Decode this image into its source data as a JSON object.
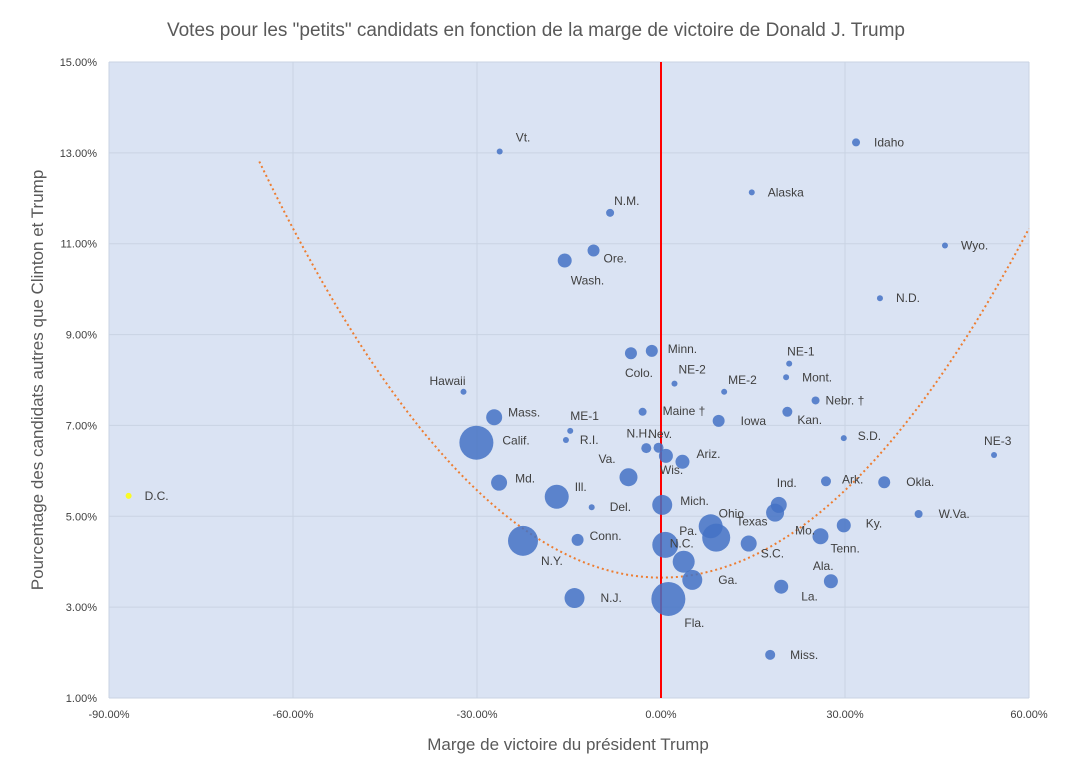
{
  "chart_data": {
    "type": "scatter",
    "title": "Votes pour les \"petits\" candidats en fonction de la marge de victoire de Donald J. Trump",
    "xlabel": "Marge de victoire du président Trump",
    "ylabel": "Pourcentage des candidats autres que Clinton et Trump",
    "xlim": [
      -0.9,
      0.6
    ],
    "ylim": [
      0.01,
      0.15
    ],
    "x_ticks": [
      -0.9,
      -0.6,
      -0.3,
      0.0,
      0.3,
      0.6
    ],
    "x_tick_labels": [
      "-90.00%",
      "-60.00%",
      "-30.00%",
      "0.00%",
      "30.00%",
      "60.00%"
    ],
    "y_ticks": [
      0.01,
      0.03,
      0.05,
      0.07,
      0.09,
      0.11,
      0.13,
      0.15
    ],
    "y_tick_labels": [
      "1.00%",
      "3.00%",
      "5.00%",
      "7.00%",
      "9.00%",
      "11.00%",
      "13.00%",
      "15.00%"
    ],
    "grid": true,
    "vertical_reference_line_x": 0.0,
    "trendline": {
      "type": "polynomial",
      "degree": 2,
      "coefficients": [
        0.0365,
        0.0,
        0.2135
      ],
      "x_range": [
        -0.655,
        0.6
      ]
    },
    "colors": {
      "plot_bg": "#dae3f3",
      "point": "#4472c4",
      "highlight_point": "#ffff00",
      "ref_line": "#ff0000",
      "trendline": "#ed7d31",
      "grid": "#c9d3e3"
    },
    "points": [
      {
        "state": "Vt.",
        "x": -0.263,
        "y": 0.1303,
        "size": 3
      },
      {
        "state": "Idaho",
        "x": 0.318,
        "y": 0.1323,
        "size": 4
      },
      {
        "state": "Alaska",
        "x": 0.148,
        "y": 0.1213,
        "size": 3
      },
      {
        "state": "N.M.",
        "x": -0.083,
        "y": 0.1168,
        "size": 4
      },
      {
        "state": "Wyo.",
        "x": 0.463,
        "y": 0.1096,
        "size": 3
      },
      {
        "state": "Ore.",
        "x": -0.11,
        "y": 0.1085,
        "size": 6
      },
      {
        "state": "Wash.",
        "x": -0.157,
        "y": 0.1063,
        "size": 7
      },
      {
        "state": "N.D.",
        "x": 0.357,
        "y": 0.098,
        "size": 3
      },
      {
        "state": "Minn.",
        "x": -0.015,
        "y": 0.0864,
        "size": 6
      },
      {
        "state": "Colo.",
        "x": -0.049,
        "y": 0.0859,
        "size": 6
      },
      {
        "state": "NE-1",
        "x": 0.209,
        "y": 0.0836,
        "size": 3
      },
      {
        "state": "Mont.",
        "x": 0.204,
        "y": 0.0806,
        "size": 3
      },
      {
        "state": "NE-2",
        "x": 0.022,
        "y": 0.0792,
        "size": 3
      },
      {
        "state": "Hawaii",
        "x": -0.322,
        "y": 0.0774,
        "size": 3
      },
      {
        "state": "ME-2",
        "x": 0.103,
        "y": 0.0774,
        "size": 3
      },
      {
        "state": "Nebr. †",
        "x": 0.252,
        "y": 0.0755,
        "size": 4
      },
      {
        "state": "Mass.",
        "x": -0.272,
        "y": 0.0718,
        "size": 8
      },
      {
        "state": "Maine †",
        "x": -0.03,
        "y": 0.073,
        "size": 4
      },
      {
        "state": "Kan.",
        "x": 0.206,
        "y": 0.073,
        "size": 5
      },
      {
        "state": "Iowa",
        "x": 0.094,
        "y": 0.071,
        "size": 6
      },
      {
        "state": "ME-1",
        "x": -0.148,
        "y": 0.0688,
        "size": 3
      },
      {
        "state": "R.I.",
        "x": -0.155,
        "y": 0.0668,
        "size": 3
      },
      {
        "state": "S.D.",
        "x": 0.298,
        "y": 0.0672,
        "size": 3
      },
      {
        "state": "Calif.",
        "x": -0.301,
        "y": 0.0662,
        "size": 17
      },
      {
        "state": "N.H.",
        "x": -0.004,
        "y": 0.0651,
        "size": 5
      },
      {
        "state": "Nev.",
        "x": -0.024,
        "y": 0.065,
        "size": 5
      },
      {
        "state": "NE-3",
        "x": 0.543,
        "y": 0.0635,
        "size": 3
      },
      {
        "state": "Ariz.",
        "x": 0.035,
        "y": 0.062,
        "size": 7
      },
      {
        "state": "Wis.",
        "x": 0.008,
        "y": 0.0633,
        "size": 7
      },
      {
        "state": "Va.",
        "x": -0.053,
        "y": 0.0586,
        "size": 9
      },
      {
        "state": "Ark.",
        "x": 0.269,
        "y": 0.0577,
        "size": 5
      },
      {
        "state": "Okla.",
        "x": 0.364,
        "y": 0.0575,
        "size": 6
      },
      {
        "state": "Md.",
        "x": -0.264,
        "y": 0.0574,
        "size": 8
      },
      {
        "state": "D.C.",
        "x": -0.868,
        "y": 0.0545,
        "size": 3,
        "highlight": true
      },
      {
        "state": "Ill.",
        "x": -0.17,
        "y": 0.0543,
        "size": 12
      },
      {
        "state": "Ind.",
        "x": 0.192,
        "y": 0.0525,
        "size": 8
      },
      {
        "state": "Mich.",
        "x": 0.002,
        "y": 0.0525,
        "size": 10
      },
      {
        "state": "Del.",
        "x": -0.113,
        "y": 0.052,
        "size": 3
      },
      {
        "state": "W.Va.",
        "x": 0.42,
        "y": 0.0505,
        "size": 4
      },
      {
        "state": "Ohio",
        "x": 0.081,
        "y": 0.0478,
        "size": 12
      },
      {
        "state": "Ky.",
        "x": 0.298,
        "y": 0.048,
        "size": 7
      },
      {
        "state": "Mo.",
        "x": 0.186,
        "y": 0.0508,
        "size": 9
      },
      {
        "state": "Texas",
        "x": 0.09,
        "y": 0.0453,
        "size": 14
      },
      {
        "state": "Tenn.",
        "x": 0.26,
        "y": 0.0456,
        "size": 8
      },
      {
        "state": "Conn.",
        "x": -0.136,
        "y": 0.0448,
        "size": 6
      },
      {
        "state": "N.Y.",
        "x": -0.225,
        "y": 0.0446,
        "size": 15
      },
      {
        "state": "S.C.",
        "x": 0.143,
        "y": 0.044,
        "size": 8
      },
      {
        "state": "Pa.",
        "x": 0.007,
        "y": 0.0437,
        "size": 13
      },
      {
        "state": "N.C.",
        "x": 0.037,
        "y": 0.04,
        "size": 11
      },
      {
        "state": "Ala.",
        "x": 0.277,
        "y": 0.0357,
        "size": 7
      },
      {
        "state": "Ga.",
        "x": 0.051,
        "y": 0.036,
        "size": 10
      },
      {
        "state": "La.",
        "x": 0.196,
        "y": 0.0345,
        "size": 7
      },
      {
        "state": "N.J.",
        "x": -0.141,
        "y": 0.032,
        "size": 10
      },
      {
        "state": "Fla.",
        "x": 0.012,
        "y": 0.0318,
        "size": 17
      },
      {
        "state": "Miss.",
        "x": 0.178,
        "y": 0.0195,
        "size": 5
      }
    ]
  },
  "legend": null
}
